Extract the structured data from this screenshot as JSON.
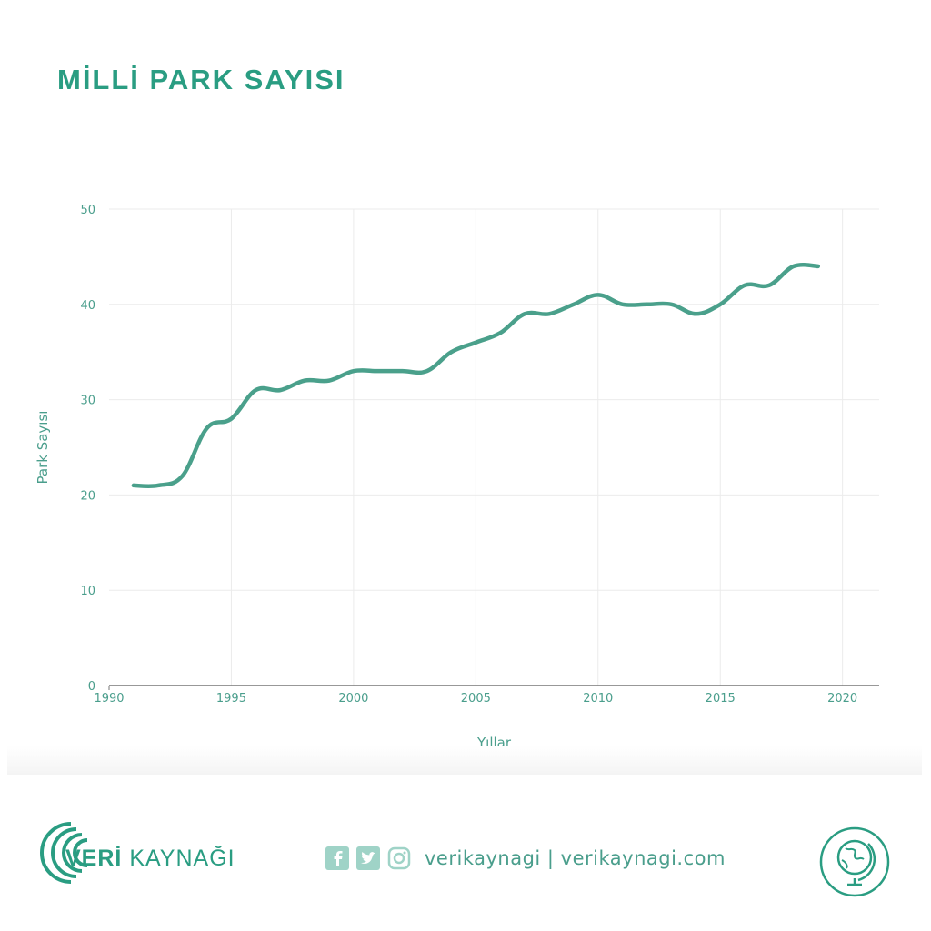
{
  "header": {
    "title": "MİLLİ PARK SAYISI"
  },
  "colors": {
    "accent": "#2a9d82",
    "line": "#4aa08b",
    "axis_text": "#4a9e8c",
    "grid": "#ebebeb",
    "axis_line": "#777777"
  },
  "chart_data": {
    "type": "line",
    "title": "MİLLİ PARK SAYISI",
    "xlabel": "Yıllar",
    "ylabel": "Park Sayısı",
    "xlim": [
      1990,
      2021.5
    ],
    "ylim": [
      0,
      50
    ],
    "x_ticks": [
      1990,
      1995,
      2000,
      2005,
      2010,
      2015,
      2020
    ],
    "y_ticks": [
      0,
      10,
      20,
      30,
      40,
      50
    ],
    "grid": true,
    "series": [
      {
        "x": [
          1991,
          1992,
          1993,
          1994,
          1995,
          1996,
          1997,
          1998,
          1999,
          2000,
          2001,
          2002,
          2003,
          2004,
          2005,
          2006,
          2007,
          2008,
          2009,
          2010,
          2011,
          2012,
          2013,
          2014,
          2015,
          2016,
          2017,
          2018,
          2019
        ],
        "values": [
          21,
          21,
          22,
          27,
          28,
          31,
          31,
          32,
          32,
          33,
          33,
          33,
          33,
          35,
          36,
          37,
          39,
          39,
          40,
          41,
          40,
          40,
          40,
          39,
          40,
          42,
          42,
          44,
          44
        ]
      }
    ]
  },
  "footer": {
    "logo_bold": "VERİ",
    "logo_light": "KAYNAĞI",
    "social_icons": [
      "facebook-icon",
      "twitter-icon",
      "instagram-icon"
    ],
    "handle": "verikaynagi | verikaynagi.com",
    "badge_icon": "globe-icon"
  }
}
